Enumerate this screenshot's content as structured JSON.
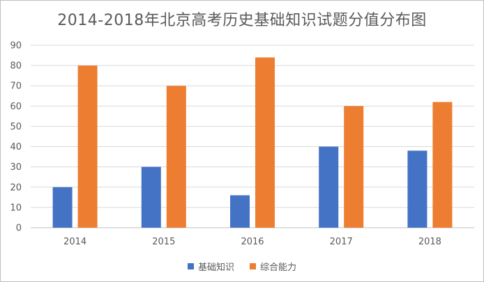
{
  "chart_data": {
    "type": "bar",
    "title": "2014-2018年北京高考历史基础知识试题分值分布图",
    "categories": [
      "2014",
      "2015",
      "2016",
      "2017",
      "2018"
    ],
    "series": [
      {
        "name": "基础知识",
        "values": [
          20,
          30,
          16,
          40,
          38
        ],
        "color": "#4472C4"
      },
      {
        "name": "综合能力",
        "values": [
          80,
          70,
          84,
          60,
          62
        ],
        "color": "#ED7D31"
      }
    ],
    "ylim": [
      0,
      90
    ],
    "yticks": [
      "0",
      "10",
      "20",
      "30",
      "40",
      "50",
      "60",
      "70",
      "80",
      "90"
    ],
    "grid": true,
    "legend_position": "bottom"
  }
}
